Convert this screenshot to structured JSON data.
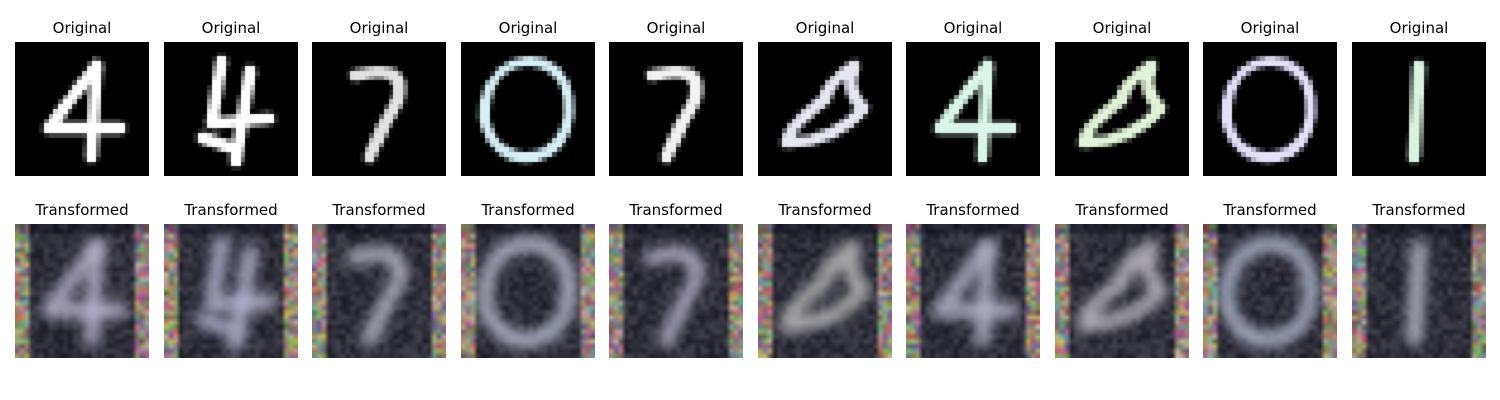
{
  "rows": [
    {
      "label": "Original",
      "kind": "original",
      "images": [
        {
          "name": "original-digit-4-image",
          "digit": "4",
          "color": "#ffffff"
        },
        {
          "name": "original-digit-4-slanted-image",
          "digit": "4",
          "color": "#ffffff"
        },
        {
          "name": "original-digit-7-image",
          "digit": "7",
          "color": "#e2e2e2"
        },
        {
          "name": "original-digit-0-image",
          "digit": "0",
          "color": "#d4f0f4"
        },
        {
          "name": "original-digit-7-thin-image",
          "digit": "7",
          "color": "#f2f2f2"
        },
        {
          "name": "original-digit-8-image",
          "digit": "8",
          "color": "#e6e6ee"
        },
        {
          "name": "original-digit-4-mint-image",
          "digit": "4",
          "color": "#d8f6ea"
        },
        {
          "name": "original-digit-8-green-image",
          "digit": "8",
          "color": "#e2f4d8"
        },
        {
          "name": "original-digit-0-lavender-image",
          "digit": "0",
          "color": "#e4e0fa"
        },
        {
          "name": "original-digit-1-image",
          "digit": "1",
          "color": "#d8f4e0"
        }
      ]
    },
    {
      "label": "Transformed",
      "kind": "transformed",
      "images": [
        {
          "name": "transformed-digit-4-image",
          "digit": "4",
          "color": "#b8b4cc"
        },
        {
          "name": "transformed-digit-4-slanted-image",
          "digit": "4",
          "color": "#b4b4d0"
        },
        {
          "name": "transformed-digit-7-image",
          "digit": "7",
          "color": "#b8b8c4"
        },
        {
          "name": "transformed-digit-0-image",
          "digit": "0",
          "color": "#b8bccc"
        },
        {
          "name": "transformed-digit-7-thin-image",
          "digit": "7",
          "color": "#b4b0c4"
        },
        {
          "name": "transformed-digit-8-image",
          "digit": "8",
          "color": "#bcbcbc"
        },
        {
          "name": "transformed-digit-4-mint-image",
          "digit": "4",
          "color": "#b4b4c8"
        },
        {
          "name": "transformed-digit-8-green-image",
          "digit": "8",
          "color": "#c0bcc4"
        },
        {
          "name": "transformed-digit-0-lavender-image",
          "digit": "0",
          "color": "#b0b8cc"
        },
        {
          "name": "transformed-digit-1-image",
          "digit": "1",
          "color": "#b8bcc8"
        }
      ]
    }
  ]
}
